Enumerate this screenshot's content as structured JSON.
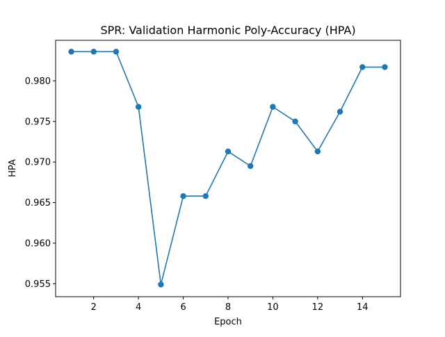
{
  "chart_data": {
    "type": "line",
    "title": "SPR: Validation Harmonic Poly-Accuracy (HPA)",
    "xlabel": "Epoch",
    "ylabel": "HPA",
    "xlim": [
      0.3,
      15.7
    ],
    "ylim": [
      0.9534,
      0.985
    ],
    "xticks": [
      2,
      4,
      6,
      8,
      10,
      12,
      14
    ],
    "xtick_labels": [
      "2",
      "4",
      "6",
      "8",
      "10",
      "12",
      "14"
    ],
    "yticks": [
      0.955,
      0.96,
      0.965,
      0.97,
      0.975,
      0.98
    ],
    "ytick_labels": [
      "0.955",
      "0.960",
      "0.965",
      "0.970",
      "0.975",
      "0.980"
    ],
    "grid": false,
    "legend": false,
    "series": [
      {
        "color": "#1f77b4",
        "marker": "circle",
        "x": [
          1,
          2,
          3,
          4,
          5,
          6,
          7,
          8,
          9,
          10,
          11,
          12,
          13,
          14,
          15
        ],
        "y": [
          0.9836,
          0.9836,
          0.9836,
          0.9768,
          0.9549,
          0.9658,
          0.9658,
          0.9713,
          0.9695,
          0.9768,
          0.975,
          0.9713,
          0.9762,
          0.9817,
          0.9817
        ]
      }
    ]
  }
}
